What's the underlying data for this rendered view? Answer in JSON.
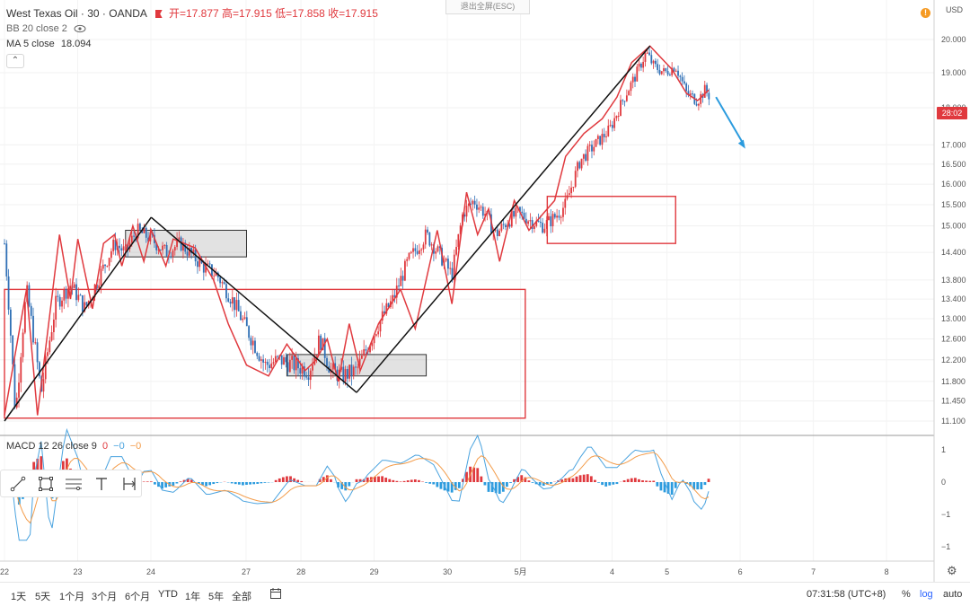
{
  "legend": {
    "symbol": "West Texas Oil · 30 · OANDA",
    "open_label": "开=17.877",
    "high_label": "高=17.915",
    "low_label": "低=17.858",
    "close_label": "收=17.915",
    "bb_label": "BB 20 close 2",
    "ma_label": "MA 5 close",
    "ma_value": "18.094"
  },
  "esc_hint": "退出全屏(ESC)",
  "price_axis": {
    "currency": "USD",
    "current_price_tag": "28:02",
    "labels": [
      "20.000",
      "19.000",
      "18.000",
      "17.000",
      "16.500",
      "16.000",
      "15.500",
      "15.000",
      "14.400",
      "13.800",
      "13.400",
      "13.000",
      "12.600",
      "12.200",
      "11.800",
      "11.450",
      "11.100"
    ]
  },
  "macd": {
    "label": "MACD 12 26 close 9",
    "v1": "0",
    "v2": "−0",
    "v3": "−0",
    "axis_labels": [
      "1",
      "0",
      "−1",
      "−1"
    ]
  },
  "time_axis": {
    "labels": [
      "22",
      "23",
      "24",
      "27",
      "28",
      "29",
      "30",
      "5月",
      "4",
      "5",
      "6",
      "7",
      "8"
    ]
  },
  "bottom_bar": {
    "ranges": [
      "1天",
      "5天",
      "1个月",
      "3个月",
      "6个月",
      "YTD",
      "1年",
      "5年",
      "全部"
    ],
    "time": "07:31:58 (UTC+8)",
    "percent": "%",
    "log": "log",
    "auto": "auto"
  },
  "colors": {
    "up": "#e0393e",
    "down": "#2f6fb5",
    "pattern": "#e0393e",
    "trend": "#111111",
    "macd_line": "#4aa3df",
    "signal_line": "#f39c4a"
  },
  "chart_data": {
    "type": "candlestick",
    "title": "West Texas Oil · 30 · OANDA",
    "ylabel": "USD",
    "ylim": [
      11.0,
      20.3
    ],
    "price_path": [
      [
        0.0,
        14.6
      ],
      [
        0.15,
        11.2
      ],
      [
        0.3,
        13.6
      ],
      [
        0.5,
        11.6
      ],
      [
        0.7,
        13.3
      ],
      [
        0.9,
        13.7
      ],
      [
        1.1,
        13.2
      ],
      [
        1.3,
        13.9
      ],
      [
        1.5,
        14.6
      ],
      [
        1.65,
        14.4
      ],
      [
        1.8,
        14.9
      ],
      [
        2.0,
        14.7
      ],
      [
        2.2,
        14.4
      ],
      [
        2.4,
        14.6
      ],
      [
        2.7,
        14.1
      ],
      [
        2.9,
        13.9
      ],
      [
        3.1,
        13.4
      ],
      [
        3.3,
        12.8
      ],
      [
        3.55,
        12.1
      ],
      [
        3.75,
        12.2
      ],
      [
        3.95,
        12.1
      ],
      [
        4.15,
        12.0
      ],
      [
        4.3,
        12.6
      ],
      [
        4.45,
        12.0
      ],
      [
        4.6,
        11.9
      ],
      [
        4.8,
        12.0
      ],
      [
        4.9,
        12.3
      ],
      [
        5.1,
        12.9
      ],
      [
        5.3,
        13.4
      ],
      [
        5.5,
        14.2
      ],
      [
        5.75,
        14.8
      ],
      [
        5.95,
        14.3
      ],
      [
        6.1,
        13.9
      ],
      [
        6.25,
        15.3
      ],
      [
        6.4,
        15.6
      ],
      [
        6.55,
        15.3
      ],
      [
        6.7,
        14.8
      ],
      [
        6.85,
        15.1
      ],
      [
        7.0,
        15.3
      ],
      [
        7.2,
        15.1
      ],
      [
        7.35,
        15.0
      ],
      [
        7.5,
        15.2
      ],
      [
        7.65,
        15.5
      ],
      [
        7.85,
        16.6
      ],
      [
        8.05,
        17.0
      ],
      [
        8.25,
        17.4
      ],
      [
        8.45,
        18.3
      ],
      [
        8.6,
        18.9
      ],
      [
        8.75,
        19.6
      ],
      [
        8.85,
        19.2
      ],
      [
        9.0,
        19.0
      ],
      [
        9.15,
        19.2
      ],
      [
        9.3,
        18.4
      ],
      [
        9.45,
        18.2
      ],
      [
        9.55,
        18.5
      ],
      [
        9.62,
        18.3
      ]
    ],
    "zigzag": [
      [
        0.0,
        11.2
      ],
      [
        0.3,
        13.6
      ],
      [
        0.45,
        11.2
      ],
      [
        0.75,
        14.8
      ],
      [
        0.9,
        13.4
      ],
      [
        1.0,
        14.7
      ],
      [
        1.2,
        13.2
      ],
      [
        1.35,
        14.6
      ],
      [
        1.5,
        14.8
      ],
      [
        1.6,
        14.1
      ],
      [
        1.75,
        15.0
      ],
      [
        1.9,
        14.2
      ],
      [
        2.0,
        14.9
      ],
      [
        2.2,
        14.1
      ],
      [
        2.3,
        14.7
      ],
      [
        2.6,
        14.5
      ],
      [
        2.85,
        13.8
      ],
      [
        3.05,
        12.9
      ],
      [
        3.3,
        12.1
      ],
      [
        3.6,
        11.9
      ],
      [
        3.85,
        12.5
      ],
      [
        4.1,
        12.0
      ],
      [
        4.25,
        12.2
      ],
      [
        4.4,
        12.6
      ],
      [
        4.55,
        11.8
      ],
      [
        4.7,
        12.9
      ],
      [
        4.85,
        12.0
      ],
      [
        5.1,
        12.9
      ],
      [
        5.4,
        13.6
      ],
      [
        5.6,
        12.8
      ],
      [
        5.9,
        14.9
      ],
      [
        6.1,
        13.3
      ],
      [
        6.3,
        15.8
      ],
      [
        6.45,
        14.8
      ],
      [
        6.6,
        15.4
      ],
      [
        6.75,
        14.2
      ],
      [
        6.95,
        15.6
      ],
      [
        7.15,
        14.9
      ],
      [
        7.35,
        15.3
      ],
      [
        7.5,
        15.6
      ],
      [
        7.65,
        16.7
      ],
      [
        7.9,
        17.3
      ],
      [
        8.15,
        17.7
      ],
      [
        8.35,
        18.3
      ],
      [
        8.55,
        19.3
      ],
      [
        8.8,
        19.8
      ],
      [
        9.1,
        19.1
      ],
      [
        9.3,
        18.4
      ],
      [
        9.45,
        18.2
      ],
      [
        9.6,
        18.5
      ]
    ],
    "trend_lines": [
      [
        [
          0.0,
          11.1
        ],
        [
          2.0,
          15.2
        ]
      ],
      [
        [
          2.0,
          15.2
        ],
        [
          4.8,
          11.6
        ]
      ],
      [
        [
          4.8,
          11.6
        ],
        [
          8.8,
          19.8
        ]
      ]
    ],
    "rectangles": [
      {
        "x0": 0.0,
        "x1": 7.1,
        "y0": 11.15,
        "y1": 13.6,
        "style": "red-outline"
      },
      {
        "x0": 7.4,
        "x1": 9.15,
        "y0": 14.6,
        "y1": 15.7,
        "style": "red-outline"
      },
      {
        "x0": 1.65,
        "x1": 3.3,
        "y0": 14.3,
        "y1": 14.9,
        "style": "gray-fill"
      },
      {
        "x0": 3.85,
        "x1": 5.75,
        "y0": 11.9,
        "y1": 12.3,
        "style": "gray-fill"
      }
    ],
    "forecast_arrow": [
      [
        9.7,
        18.3
      ],
      [
        10.1,
        16.9
      ]
    ]
  }
}
